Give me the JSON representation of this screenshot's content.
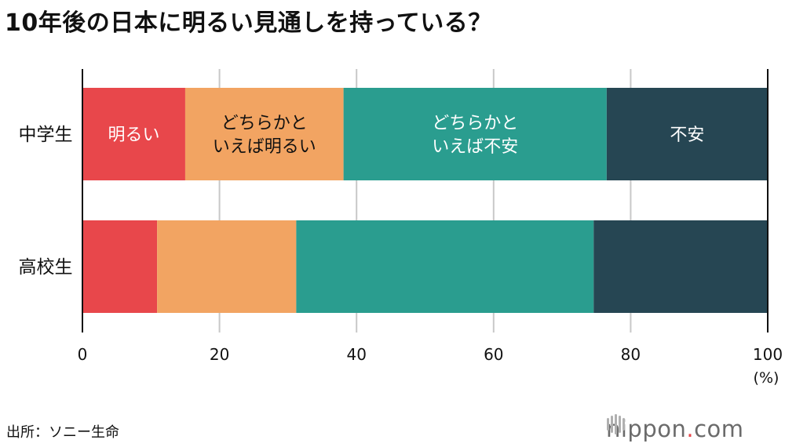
{
  "title": "10年後の日本に明るい見通しを持っている？",
  "source": "出所：ソニー生命",
  "brand": {
    "name": "nippon",
    "dot": ".",
    "tld": "com"
  },
  "colors": {
    "bright": "#e8474b",
    "somewhat_bright": "#f2a462",
    "somewhat_uneasy": "#2a9d8f",
    "uneasy": "#264653",
    "grid": "#c8c8c8",
    "axis": "#111111"
  },
  "chart_data": {
    "type": "bar",
    "orientation": "horizontal",
    "stacked": true,
    "categories": [
      "中学生",
      "高校生"
    ],
    "series": [
      {
        "name": "明るい",
        "values": [
          15.0,
          10.9
        ],
        "color": "#e8474b"
      },
      {
        "name": "どちらかと\nいえば明るい",
        "values": [
          23.1,
          20.3
        ],
        "color": "#f2a462"
      },
      {
        "name": "どちらかと\nいえば不安",
        "values": [
          38.4,
          43.4
        ],
        "color": "#2a9d8f"
      },
      {
        "name": "不安",
        "values": [
          23.5,
          25.4
        ],
        "color": "#264653"
      }
    ],
    "xlim": [
      0,
      100
    ],
    "xticks": [
      "0",
      "20",
      "40",
      "60",
      "80",
      "100"
    ],
    "xunit": "(%)",
    "grid": true,
    "legend": "inline-labels-on-first-bar"
  }
}
